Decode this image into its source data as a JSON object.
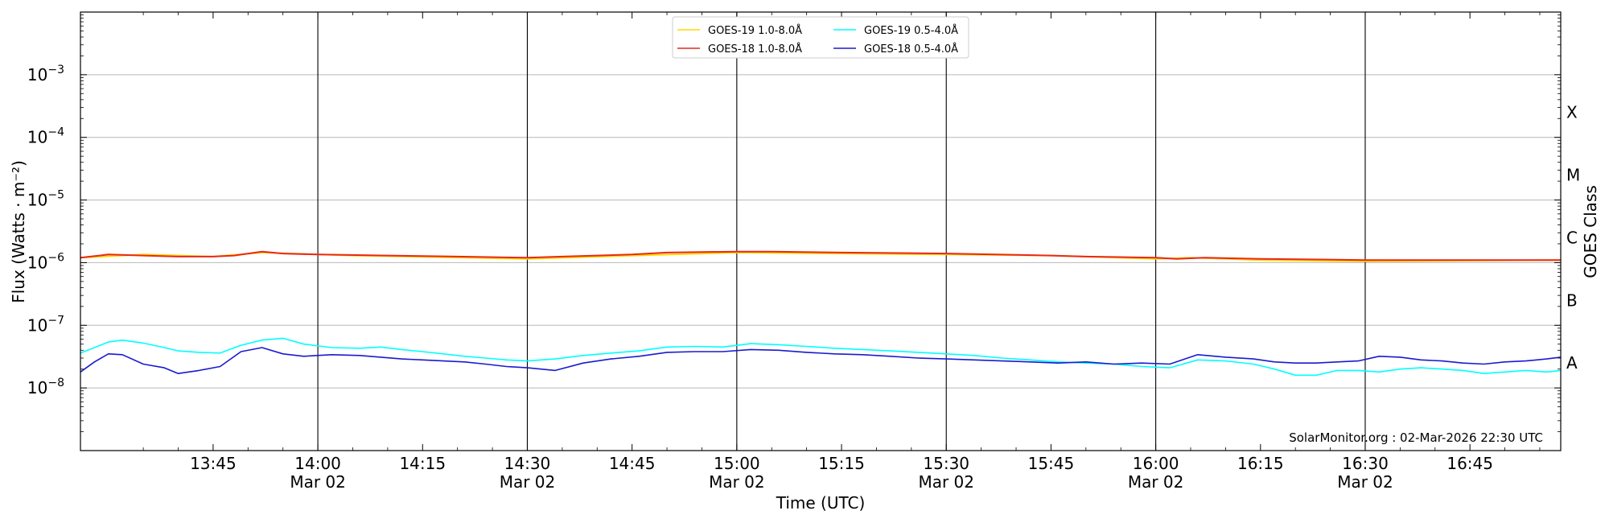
{
  "chart_data": {
    "type": "line",
    "xlabel": "Time (UTC)",
    "ylabel": "Flux (Watts · m⁻²)",
    "y2label": "GOES Class",
    "yscale": "log",
    "ylim": [
      1e-09,
      0.01
    ],
    "xlim": [
      "13:26",
      "16:58"
    ],
    "x_ticks": [
      {
        "time": "13:45",
        "label": "13:45",
        "date": ""
      },
      {
        "time": "14:00",
        "label": "14:00",
        "date": "Mar 02"
      },
      {
        "time": "14:15",
        "label": "14:15",
        "date": ""
      },
      {
        "time": "14:30",
        "label": "14:30",
        "date": "Mar 02"
      },
      {
        "time": "14:45",
        "label": "14:45",
        "date": ""
      },
      {
        "time": "15:00",
        "label": "15:00",
        "date": "Mar 02"
      },
      {
        "time": "15:15",
        "label": "15:15",
        "date": ""
      },
      {
        "time": "15:30",
        "label": "15:30",
        "date": "Mar 02"
      },
      {
        "time": "15:45",
        "label": "15:45",
        "date": ""
      },
      {
        "time": "16:00",
        "label": "16:00",
        "date": "Mar 02"
      },
      {
        "time": "16:15",
        "label": "16:15",
        "date": ""
      },
      {
        "time": "16:30",
        "label": "16:30",
        "date": "Mar 02"
      },
      {
        "time": "16:45",
        "label": "16:45",
        "date": ""
      }
    ],
    "vertical_lines": [
      "14:00",
      "14:30",
      "15:00",
      "15:30",
      "16:00",
      "16:30"
    ],
    "y_ticks": [
      {
        "value": 1e-08,
        "base": "10",
        "exp": "−8"
      },
      {
        "value": 1e-07,
        "base": "10",
        "exp": "−7"
      },
      {
        "value": 1e-06,
        "base": "10",
        "exp": "−6"
      },
      {
        "value": 1e-05,
        "base": "10",
        "exp": "−5"
      },
      {
        "value": 0.0001,
        "base": "10",
        "exp": "−4"
      },
      {
        "value": 0.001,
        "base": "10",
        "exp": "−3"
      }
    ],
    "classes": [
      {
        "label": "A",
        "value": 1e-08
      },
      {
        "label": "B",
        "value": 1e-07
      },
      {
        "label": "C",
        "value": 1e-06
      },
      {
        "label": "M",
        "value": 1e-05
      },
      {
        "label": "X",
        "value": 0.0001
      }
    ],
    "grid": true,
    "legend_position": "top-center",
    "credit": "SolarMonitor.org : 02-Mar-2026 22:30 UTC",
    "series": [
      {
        "name": "GOES-19 1.0-8.0Å",
        "color": "#ffd700",
        "x": [
          "13:26",
          "13:35",
          "13:45",
          "13:52",
          "14:05",
          "14:30",
          "14:45",
          "15:00",
          "15:15",
          "15:30",
          "15:45",
          "16:00",
          "16:05",
          "16:15",
          "16:30",
          "16:58"
        ],
        "y": [
          1.2e-06,
          1.35e-06,
          1.25e-06,
          1.45e-06,
          1.3e-06,
          1.15e-06,
          1.3e-06,
          1.45e-06,
          1.4e-06,
          1.35e-06,
          1.3e-06,
          1.15e-06,
          1.2e-06,
          1.1e-06,
          1.05e-06,
          1.1e-06
        ]
      },
      {
        "name": "GOES-18 1.0-8.0Å",
        "color": "#e8281a",
        "x": [
          "13:26",
          "13:30",
          "13:35",
          "13:40",
          "13:45",
          "13:48",
          "13:52",
          "13:55",
          "14:00",
          "14:10",
          "14:20",
          "14:30",
          "14:35",
          "14:45",
          "14:50",
          "15:00",
          "15:05",
          "15:15",
          "15:30",
          "15:45",
          "15:50",
          "16:00",
          "16:03",
          "16:07",
          "16:15",
          "16:30",
          "16:58"
        ],
        "y": [
          1.2e-06,
          1.35e-06,
          1.3e-06,
          1.25e-06,
          1.25e-06,
          1.3e-06,
          1.5e-06,
          1.4e-06,
          1.35e-06,
          1.3e-06,
          1.25e-06,
          1.2e-06,
          1.25e-06,
          1.35e-06,
          1.45e-06,
          1.5e-06,
          1.5e-06,
          1.45e-06,
          1.4e-06,
          1.3e-06,
          1.25e-06,
          1.2e-06,
          1.15e-06,
          1.2e-06,
          1.15e-06,
          1.1e-06,
          1.1e-06
        ]
      },
      {
        "name": "GOES-19 0.5-4.0Å",
        "color": "#00ffff",
        "x": [
          "13:26",
          "13:28",
          "13:30",
          "13:32",
          "13:35",
          "13:38",
          "13:40",
          "13:43",
          "13:46",
          "13:49",
          "13:52",
          "13:55",
          "13:58",
          "14:02",
          "14:06",
          "14:09",
          "14:12",
          "14:15",
          "14:18",
          "14:21",
          "14:24",
          "14:27",
          "14:30",
          "14:34",
          "14:38",
          "14:42",
          "14:46",
          "14:50",
          "14:54",
          "14:58",
          "15:02",
          "15:06",
          "15:10",
          "15:14",
          "15:18",
          "15:22",
          "15:26",
          "15:30",
          "15:34",
          "15:38",
          "15:42",
          "15:46",
          "15:50",
          "15:54",
          "15:58",
          "16:02",
          "16:06",
          "16:10",
          "16:14",
          "16:17",
          "16:20",
          "16:23",
          "16:26",
          "16:29",
          "16:32",
          "16:35",
          "16:38",
          "16:41",
          "16:44",
          "16:47",
          "16:50",
          "16:53",
          "16:56",
          "16:58"
        ],
        "y": [
          3.6e-08,
          4.4e-08,
          5.4e-08,
          5.8e-08,
          5.2e-08,
          4.4e-08,
          3.9e-08,
          3.7e-08,
          3.6e-08,
          4.8e-08,
          5.8e-08,
          6.2e-08,
          5e-08,
          4.4e-08,
          4.3e-08,
          4.5e-08,
          4.1e-08,
          3.8e-08,
          3.5e-08,
          3.2e-08,
          3e-08,
          2.8e-08,
          2.7e-08,
          2.9e-08,
          3.3e-08,
          3.6e-08,
          3.9e-08,
          4.5e-08,
          4.6e-08,
          4.5e-08,
          5.1e-08,
          4.9e-08,
          4.6e-08,
          4.3e-08,
          4.1e-08,
          3.9e-08,
          3.7e-08,
          3.5e-08,
          3.3e-08,
          3e-08,
          2.8e-08,
          2.6e-08,
          2.5e-08,
          2.4e-08,
          2.2e-08,
          2.1e-08,
          2.8e-08,
          2.7e-08,
          2.4e-08,
          2e-08,
          1.6e-08,
          1.6e-08,
          1.9e-08,
          1.9e-08,
          1.8e-08,
          2e-08,
          2.1e-08,
          2e-08,
          1.9e-08,
          1.7e-08,
          1.8e-08,
          1.9e-08,
          1.8e-08,
          1.9e-08
        ]
      },
      {
        "name": "GOES-18 0.5-4.0Å",
        "color": "#1a1ad0",
        "x": [
          "13:26",
          "13:28",
          "13:30",
          "13:32",
          "13:35",
          "13:38",
          "13:40",
          "13:43",
          "13:46",
          "13:49",
          "13:52",
          "13:55",
          "13:58",
          "14:02",
          "14:06",
          "14:09",
          "14:12",
          "14:15",
          "14:18",
          "14:21",
          "14:24",
          "14:27",
          "14:30",
          "14:34",
          "14:38",
          "14:42",
          "14:46",
          "14:50",
          "14:54",
          "14:58",
          "15:02",
          "15:06",
          "15:10",
          "15:14",
          "15:18",
          "15:22",
          "15:26",
          "15:30",
          "15:34",
          "15:38",
          "15:42",
          "15:46",
          "15:50",
          "15:54",
          "15:58",
          "16:02",
          "16:06",
          "16:10",
          "16:14",
          "16:17",
          "16:20",
          "16:23",
          "16:26",
          "16:29",
          "16:32",
          "16:35",
          "16:38",
          "16:41",
          "16:44",
          "16:47",
          "16:50",
          "16:53",
          "16:56",
          "16:58"
        ],
        "y": [
          1.8e-08,
          2.6e-08,
          3.5e-08,
          3.4e-08,
          2.4e-08,
          2.1e-08,
          1.7e-08,
          1.9e-08,
          2.2e-08,
          3.8e-08,
          4.4e-08,
          3.5e-08,
          3.2e-08,
          3.4e-08,
          3.3e-08,
          3.1e-08,
          2.9e-08,
          2.8e-08,
          2.7e-08,
          2.6e-08,
          2.4e-08,
          2.2e-08,
          2.1e-08,
          1.9e-08,
          2.5e-08,
          2.9e-08,
          3.2e-08,
          3.7e-08,
          3.8e-08,
          3.8e-08,
          4.1e-08,
          4e-08,
          3.7e-08,
          3.5e-08,
          3.4e-08,
          3.2e-08,
          3e-08,
          2.9e-08,
          2.8e-08,
          2.7e-08,
          2.6e-08,
          2.5e-08,
          2.6e-08,
          2.4e-08,
          2.5e-08,
          2.4e-08,
          3.4e-08,
          3.1e-08,
          2.9e-08,
          2.6e-08,
          2.5e-08,
          2.5e-08,
          2.6e-08,
          2.7e-08,
          3.2e-08,
          3.1e-08,
          2.8e-08,
          2.7e-08,
          2.5e-08,
          2.4e-08,
          2.6e-08,
          2.7e-08,
          2.9e-08,
          3.1e-08
        ]
      }
    ]
  }
}
